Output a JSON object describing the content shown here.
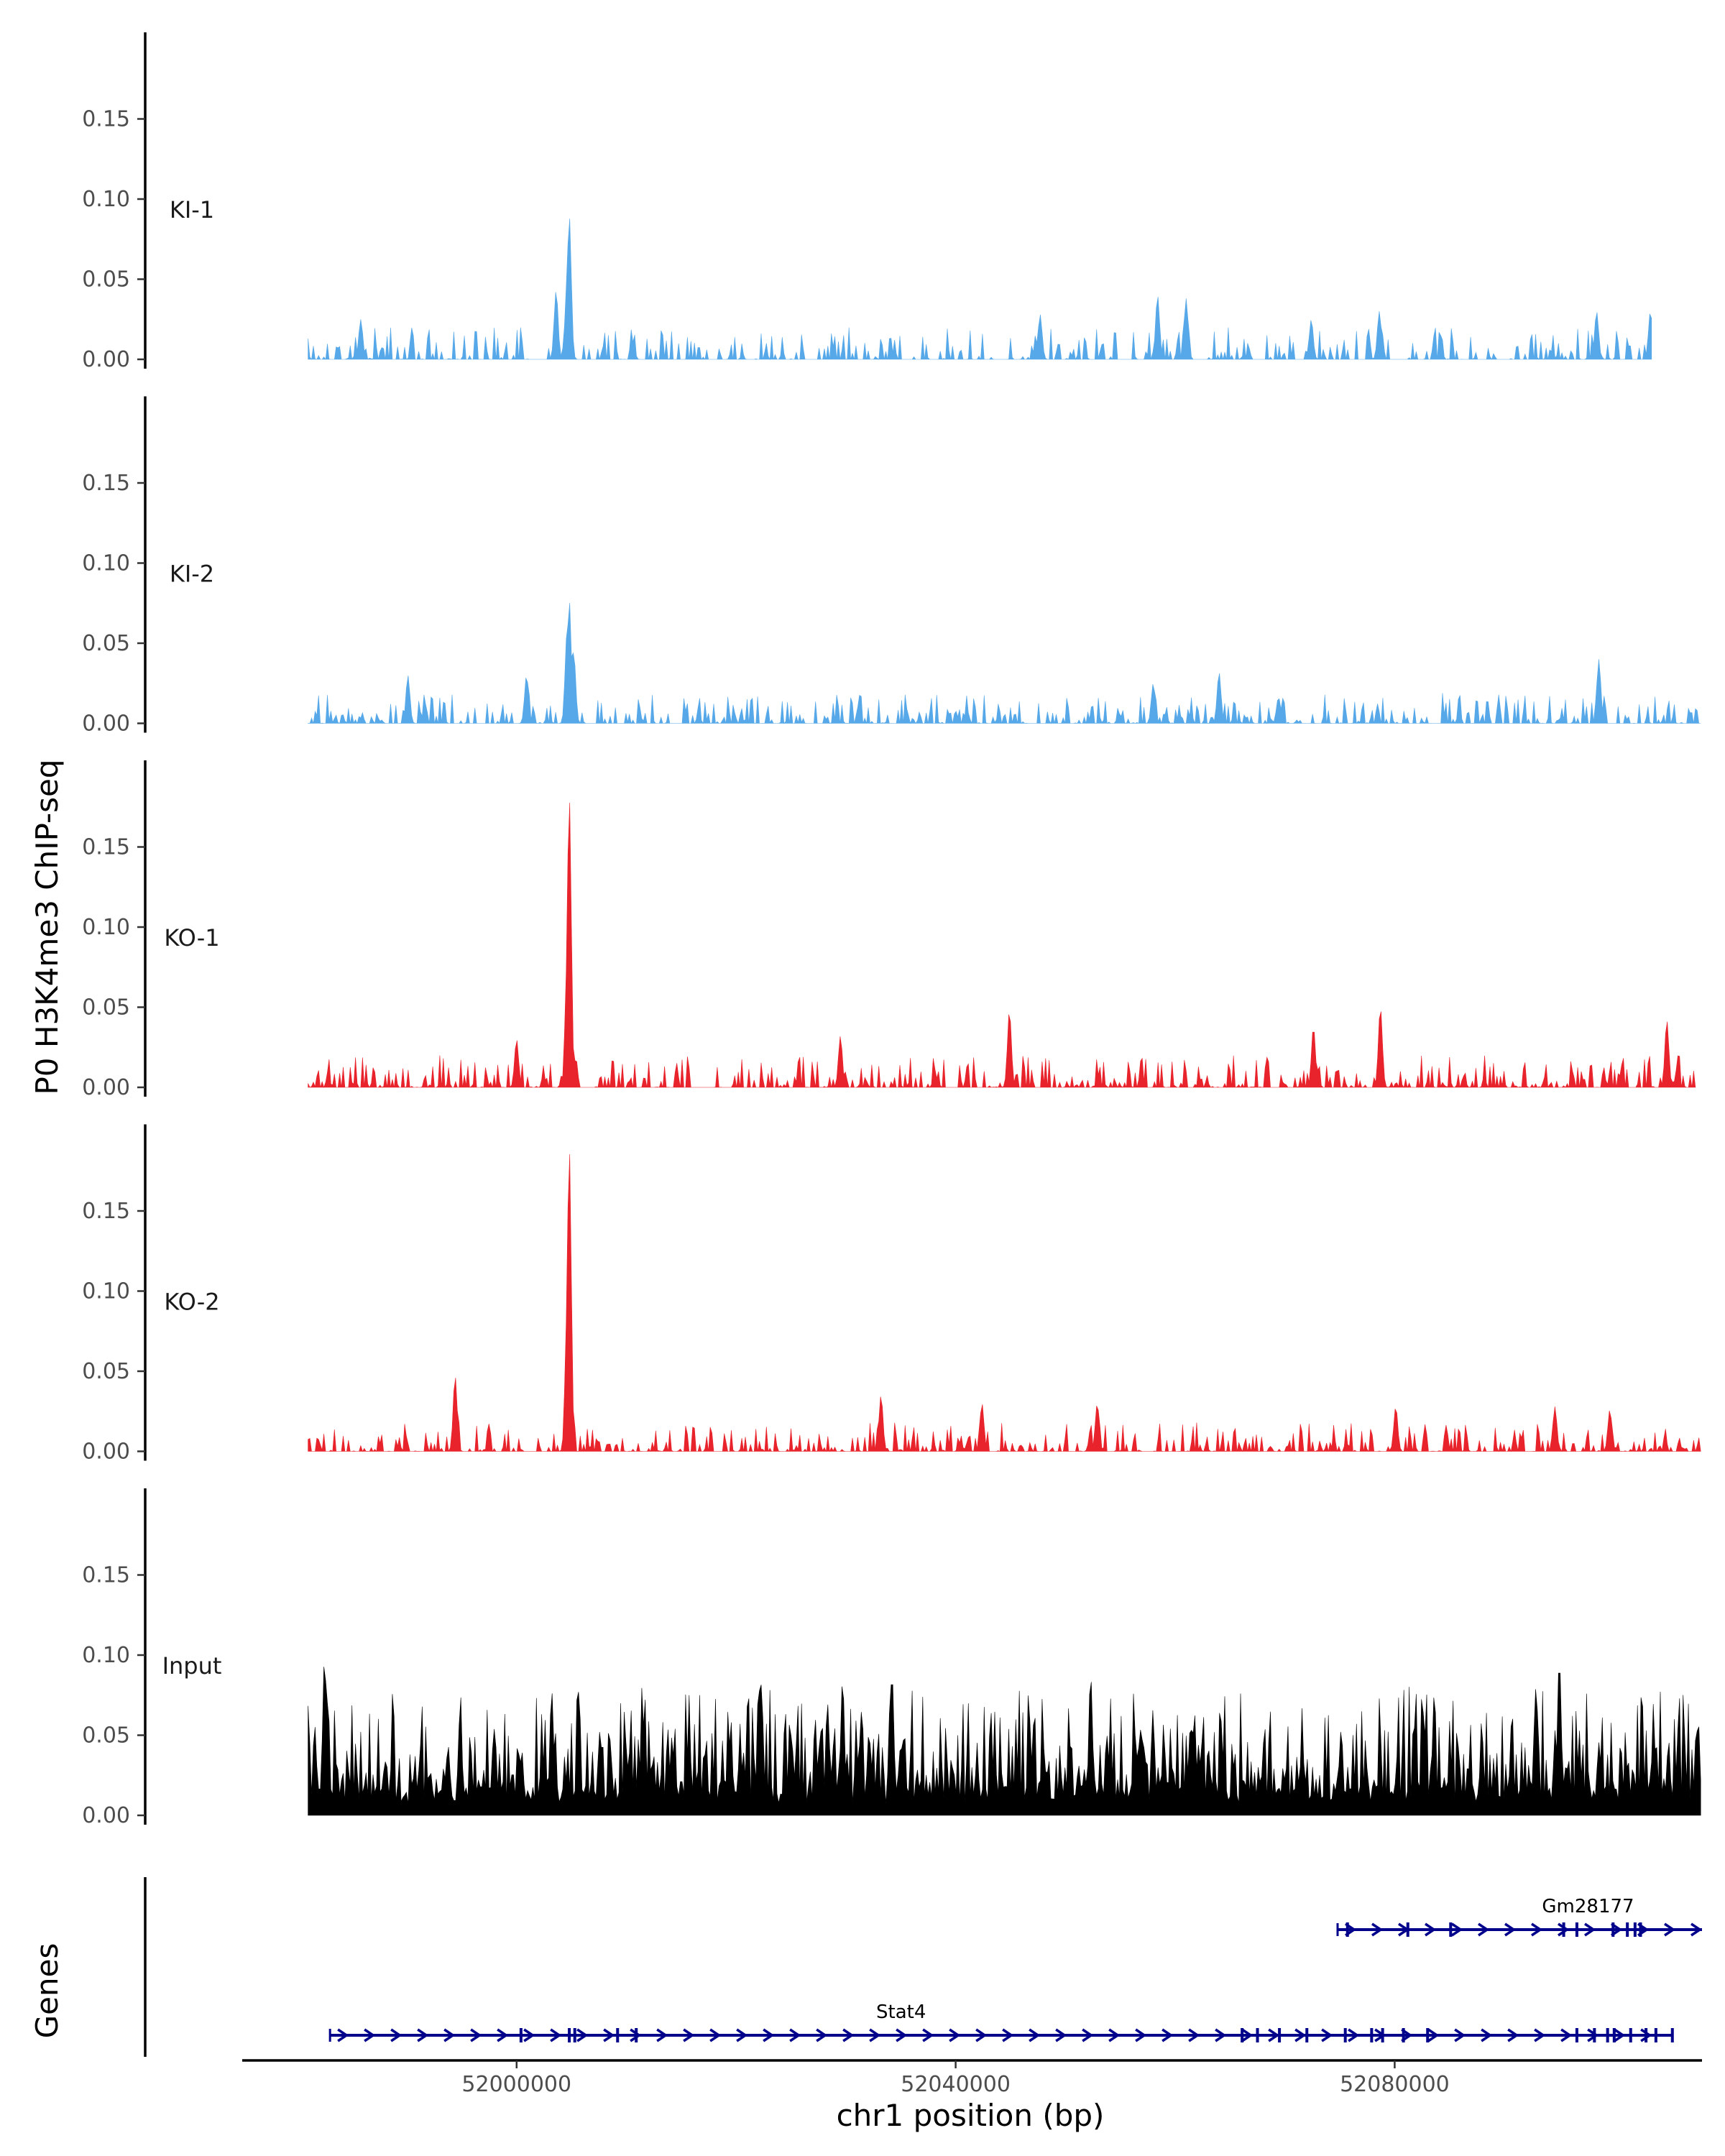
{
  "chart_data": {
    "type": "area",
    "ylabel": "P0 H3K4me3 ChIP-seq",
    "xlabel": "chr1 position (bp)",
    "genes_label": "Genes",
    "xlim": [
      51975000,
      52108000
    ],
    "ylim": [
      0,
      0.2
    ],
    "y_ticks": [
      "0.00",
      "0.05",
      "0.10",
      "0.15"
    ],
    "x_ticks": [
      "52000000",
      "52040000",
      "52080000"
    ],
    "x_tick_values": [
      52000000,
      52040000,
      52080000
    ],
    "colors": {
      "KI": "#56a8e8",
      "KO": "#e8232b",
      "Input": "#000000",
      "gene": "#00008b"
    },
    "tracks": [
      {
        "name": "KI-1",
        "color": "#56a8e8",
        "range": [
          51981000,
          52103500
        ],
        "noise_max": 0.02,
        "density": 0.55,
        "gaps": [
          [
            52001800,
            52002800
          ],
          [
            52017500,
            52018300
          ],
          [
            52026500,
            52027500
          ],
          [
            52035000,
            52036000
          ],
          [
            52043500,
            52044500
          ],
          [
            52055000,
            52056000
          ],
          [
            52061500,
            52063000
          ],
          [
            52067000,
            52068300
          ],
          [
            52079500,
            52081000
          ]
        ],
        "peaks": [
          [
            52004800,
            0.09
          ],
          [
            52004600,
            0.05
          ],
          [
            52003600,
            0.043
          ],
          [
            52058400,
            0.04
          ],
          [
            52061000,
            0.038
          ],
          [
            52078600,
            0.03
          ],
          [
            52103300,
            0.03
          ],
          [
            52098400,
            0.03
          ],
          [
            52047700,
            0.028
          ],
          [
            52072400,
            0.025
          ],
          [
            51985800,
            0.025
          ]
        ]
      },
      {
        "name": "KI-2",
        "color": "#56a8e8",
        "range": [
          51981000,
          52108000
        ],
        "noise_max": 0.018,
        "density": 0.6,
        "gaps": [
          [
            52014500,
            52015200
          ],
          [
            52046500,
            52047300
          ],
          [
            52071500,
            52072200
          ],
          [
            52083500,
            52084300
          ]
        ],
        "peaks": [
          [
            52004800,
            0.077
          ],
          [
            52004600,
            0.058
          ],
          [
            52005200,
            0.045
          ],
          [
            52098600,
            0.04
          ],
          [
            52064000,
            0.032
          ],
          [
            52000900,
            0.03
          ],
          [
            51990100,
            0.03
          ],
          [
            52084200,
            0.028
          ],
          [
            52058000,
            0.025
          ]
        ]
      },
      {
        "name": "KO-1",
        "color": "#e8232b",
        "range": [
          51981000,
          52107500
        ],
        "noise_max": 0.02,
        "density": 0.6,
        "gaps": [
          [
            52005800,
            52007000
          ],
          [
            52016200,
            52018000
          ],
          [
            52039000,
            52040200
          ]
        ],
        "peaks": [
          [
            52004800,
            0.182
          ],
          [
            52004600,
            0.08
          ],
          [
            52044900,
            0.048
          ],
          [
            52078700,
            0.05
          ],
          [
            52104800,
            0.042
          ],
          [
            52072600,
            0.038
          ],
          [
            52000000,
            0.03
          ],
          [
            52029500,
            0.032
          ]
        ]
      },
      {
        "name": "KO-2",
        "color": "#e8232b",
        "range": [
          51981000,
          52108000
        ],
        "noise_max": 0.018,
        "density": 0.6,
        "gaps": [
          [
            52091800,
            52092600
          ]
        ],
        "peaks": [
          [
            52004800,
            0.19
          ],
          [
            52004600,
            0.09
          ],
          [
            51994400,
            0.047
          ],
          [
            52033200,
            0.035
          ],
          [
            52042400,
            0.03
          ],
          [
            52052900,
            0.03
          ],
          [
            52080100,
            0.028
          ],
          [
            52094600,
            0.028
          ],
          [
            52099600,
            0.026
          ]
        ]
      },
      {
        "name": "Input",
        "color": "#000000",
        "range": [
          51981000,
          52108000
        ],
        "noise_max": 0.065,
        "density": 1.0,
        "floor": 0.012,
        "gaps": [],
        "peaks": [
          [
            51982500,
            0.098
          ],
          [
            52052300,
            0.088
          ],
          [
            52095000,
            0.098
          ],
          [
            52029700,
            0.085
          ],
          [
            52034200,
            0.09
          ],
          [
            52003200,
            0.078
          ],
          [
            52022300,
            0.082
          ]
        ]
      }
    ],
    "genes": [
      {
        "name": "Gm28177",
        "start": 52074800,
        "end": 52108000,
        "row": 0,
        "exons": [
          52075700,
          52081200,
          52085100,
          52095400,
          52096600,
          52099900,
          52101200,
          52101900,
          52102400
        ]
      },
      {
        "name": "Stat4",
        "start": 51983000,
        "end": 52105400,
        "row": 1,
        "exons": [
          52000400,
          52004800,
          52005300,
          52009200,
          52010900,
          52066100,
          52067500,
          52069500,
          52072000,
          52075500,
          52077900,
          52078900,
          52080800,
          52083000,
          52096600,
          52098200,
          52099400,
          52100000,
          52101500,
          52102900,
          52103800,
          52105300
        ]
      }
    ]
  }
}
